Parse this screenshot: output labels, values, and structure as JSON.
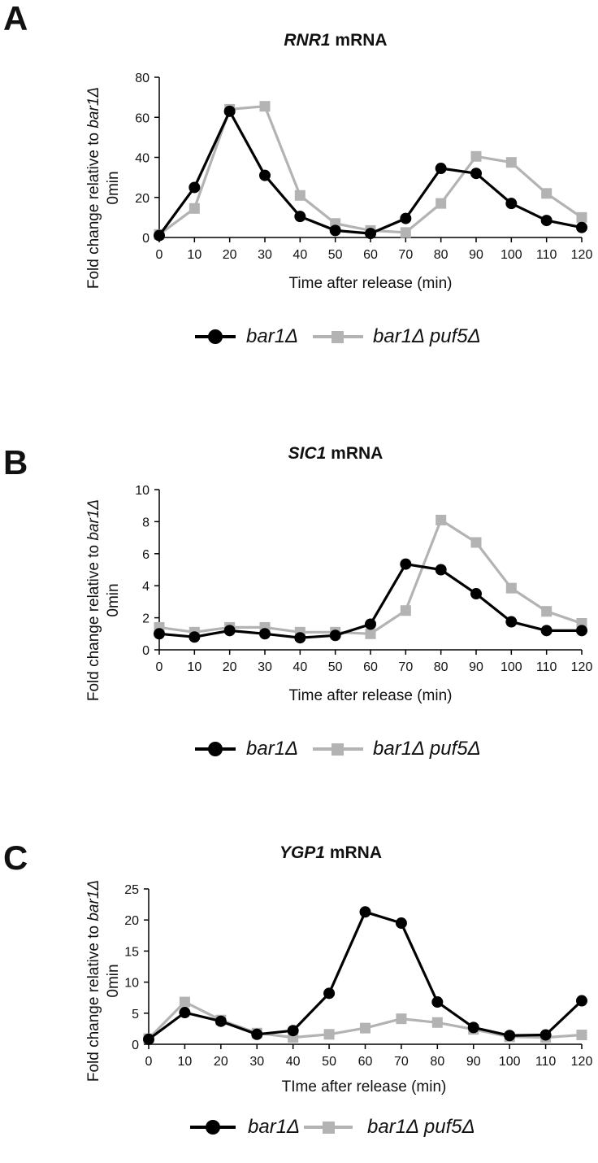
{
  "colors": {
    "bar1": "#000000",
    "bar1puf5": "#b3b3b3",
    "axis": "#000000"
  },
  "legend": {
    "series1": "bar1Δ",
    "series2": "bar1Δ puf5Δ"
  },
  "panels": [
    {
      "letter": "A",
      "title_gene": "RNR1",
      "title_rest": " mRNA",
      "ylabel_line1_prefix": "Fold change relative to ",
      "ylabel_line1_italic": "bar1Δ",
      "ylabel_line2": "0min",
      "xlabel": "Time after release (min)"
    },
    {
      "letter": "B",
      "title_gene": "SIC1",
      "title_rest": " mRNA",
      "ylabel_line1_prefix": "Fold change relative to ",
      "ylabel_line1_italic": "bar1Δ",
      "ylabel_line2": "0min",
      "xlabel": "Time after release (min)"
    },
    {
      "letter": "C",
      "title_gene": "YGP1",
      "title_rest": " mRNA",
      "ylabel_line1_prefix": "Fold change relative to ",
      "ylabel_line1_italic": "bar1Δ",
      "ylabel_line2": "0min",
      "xlabel": "TIme after release (min)"
    }
  ],
  "chart_data": [
    {
      "type": "line",
      "title": "RNR1 mRNA",
      "xlabel": "Time after release (min)",
      "ylabel": "Fold change relative to bar1Δ 0min",
      "x": [
        0,
        10,
        20,
        30,
        40,
        50,
        60,
        70,
        80,
        90,
        100,
        110,
        120
      ],
      "ylim": [
        0,
        80
      ],
      "yticks": [
        0,
        20,
        40,
        60,
        80
      ],
      "grid": false,
      "legend_position": "bottom",
      "series": [
        {
          "name": "bar1Δ",
          "marker": "circle",
          "values": [
            1,
            25,
            63,
            31,
            10.5,
            3.5,
            2,
            9.5,
            34.5,
            32,
            17,
            8.5,
            5
          ]
        },
        {
          "name": "bar1Δ puf5Δ",
          "marker": "square",
          "values": [
            1.5,
            14.5,
            64,
            65.5,
            21,
            7,
            3.5,
            2.5,
            17,
            40.5,
            37.5,
            22,
            10
          ]
        }
      ]
    },
    {
      "type": "line",
      "title": "SIC1 mRNA",
      "xlabel": "Time after release (min)",
      "ylabel": "Fold change relative to bar1Δ 0min",
      "x": [
        0,
        10,
        20,
        30,
        40,
        50,
        60,
        70,
        80,
        90,
        100,
        110,
        120
      ],
      "ylim": [
        0,
        10
      ],
      "yticks": [
        0,
        2,
        4,
        6,
        8,
        10
      ],
      "grid": false,
      "legend_position": "bottom",
      "series": [
        {
          "name": "bar1Δ",
          "marker": "circle",
          "values": [
            1,
            0.8,
            1.2,
            1,
            0.75,
            0.9,
            1.6,
            5.35,
            5,
            3.5,
            1.75,
            1.2,
            1.2
          ]
        },
        {
          "name": "bar1Δ puf5Δ",
          "marker": "square",
          "values": [
            1.4,
            1.1,
            1.4,
            1.4,
            1.1,
            1.1,
            1,
            2.45,
            8.1,
            6.7,
            3.85,
            2.4,
            1.65
          ]
        }
      ]
    },
    {
      "type": "line",
      "title": "YGP1 mRNA",
      "xlabel": "TIme after release (min)",
      "ylabel": "Fold change relative to bar1Δ 0min",
      "x": [
        0,
        10,
        20,
        30,
        40,
        50,
        60,
        70,
        80,
        90,
        100,
        110,
        120
      ],
      "ylim": [
        0,
        25
      ],
      "yticks": [
        0,
        5,
        10,
        15,
        20,
        25
      ],
      "grid": false,
      "legend_position": "bottom",
      "series": [
        {
          "name": "bar1Δ",
          "marker": "circle",
          "values": [
            0.8,
            5.1,
            3.7,
            1.6,
            2.2,
            8.2,
            21.3,
            19.5,
            6.8,
            2.7,
            1.4,
            1.5,
            7
          ]
        },
        {
          "name": "bar1Δ puf5Δ",
          "marker": "square",
          "values": [
            0.9,
            6.8,
            3.9,
            1.8,
            1.1,
            1.6,
            2.6,
            4.1,
            3.5,
            2.4,
            1.2,
            1.1,
            1.5
          ]
        }
      ]
    }
  ]
}
